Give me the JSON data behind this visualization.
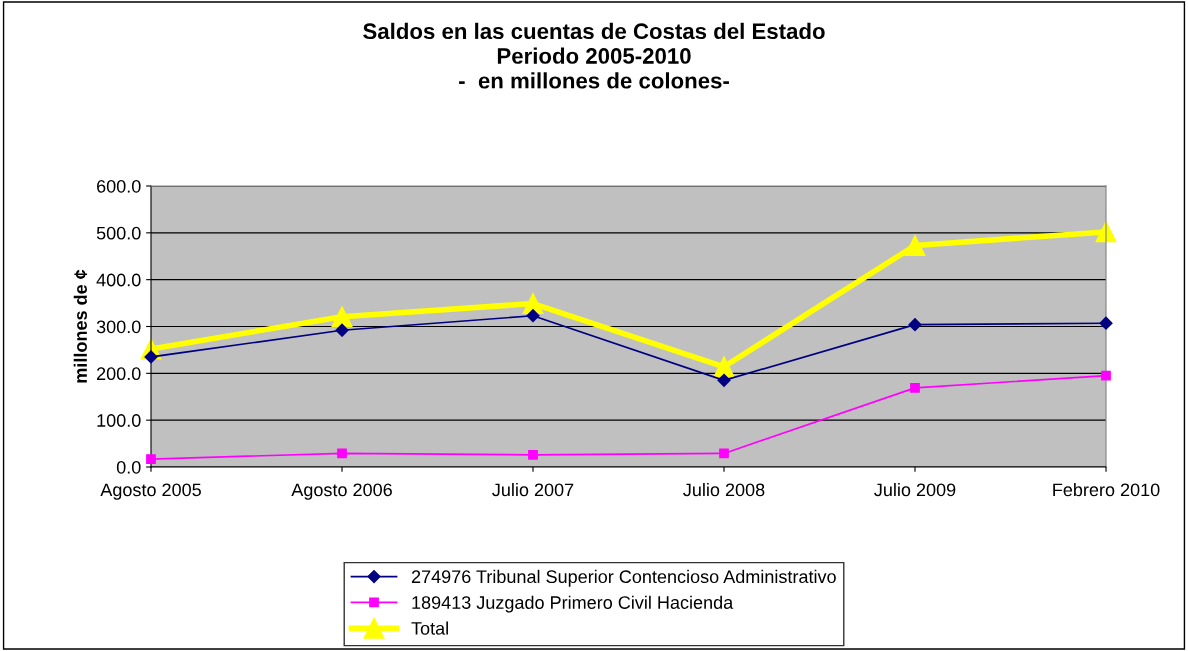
{
  "chart_data": {
    "type": "line",
    "title": "Saldos en las cuentas de Costas del Estado\nPeriodo 2005-2010\n-  en millones de colones-",
    "ylabel": "millones de ¢",
    "categories": [
      "Agosto 2005",
      "Agosto 2006",
      "Julio 2007",
      "Julio 2008",
      "Julio 2009",
      "Febrero 2010"
    ],
    "series": [
      {
        "name": "274976 Tribunal Superior Contencioso Administrativo",
        "color": "#000080",
        "marker": "diamond",
        "values": [
          235,
          292,
          323,
          185,
          304,
          307
        ]
      },
      {
        "name": "189413 Juzgado Primero Civil Hacienda",
        "color": "#ff00ff",
        "marker": "square",
        "values": [
          17,
          29,
          26,
          29,
          169,
          195
        ]
      },
      {
        "name": "Total",
        "color": "#ffff00",
        "marker": "triangle",
        "values": [
          252,
          321,
          349,
          214,
          473,
          502
        ]
      }
    ],
    "ylim": [
      0,
      600
    ],
    "yticks": [
      {
        "value": 0,
        "label": "0.0"
      },
      {
        "value": 100,
        "label": "100.0"
      },
      {
        "value": 200,
        "label": "200.0"
      },
      {
        "value": 300,
        "label": "300.0"
      },
      {
        "value": 400,
        "label": "400.0"
      },
      {
        "value": 500,
        "label": "500.0"
      },
      {
        "value": 600,
        "label": "600.0"
      }
    ],
    "grid": "y",
    "legend": "bottom"
  }
}
